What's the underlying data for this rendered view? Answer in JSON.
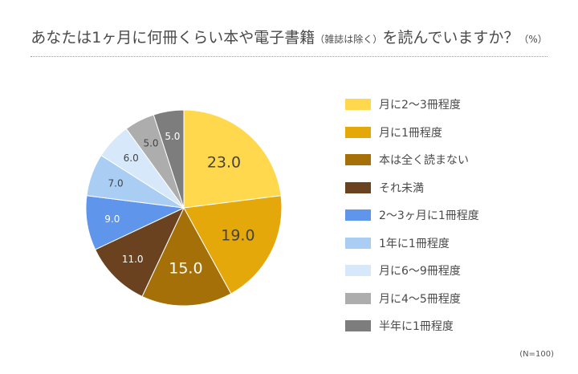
{
  "title": {
    "main": "あなたは1ヶ月に何冊くらい本や電子書籍",
    "paren": "（雑誌は除く）",
    "tail": "を読んでいますか？",
    "unit": "（%）"
  },
  "note": "(N=100)",
  "chart_data": {
    "type": "pie",
    "start": "12 o'clock",
    "direction": "clockwise",
    "slices": [
      {
        "label": "月に2〜3冊程度",
        "value": 23.0,
        "display": "23.0",
        "color": "#FFD84D",
        "text_color": "#444444"
      },
      {
        "label": "月に1冊程度",
        "value": 19.0,
        "display": "19.0",
        "color": "#E5A80A",
        "text_color": "#444444"
      },
      {
        "label": "本は全く読まない",
        "value": 15.0,
        "display": "15.0",
        "color": "#A57007",
        "text_color": "#ffffff"
      },
      {
        "label": "それ未満",
        "value": 11.0,
        "display": "11.0",
        "color": "#6A4220",
        "text_color": "#ffffff"
      },
      {
        "label": "2〜3ヶ月に1冊程度",
        "value": 9.0,
        "display": "9.0",
        "color": "#5F96EC",
        "text_color": "#ffffff"
      },
      {
        "label": "1年に1冊程度",
        "value": 7.0,
        "display": "7.0",
        "color": "#A9CDF3",
        "text_color": "#444444"
      },
      {
        "label": "月に6〜9冊程度",
        "value": 6.0,
        "display": "6.0",
        "color": "#D6E8FA",
        "text_color": "#444444"
      },
      {
        "label": "月に4〜5冊程度",
        "value": 5.0,
        "display": "5.0",
        "color": "#ADADAD",
        "text_color": "#444444"
      },
      {
        "label": "半年に1冊程度",
        "value": 5.0,
        "display": "5.0",
        "color": "#7D7D7D",
        "text_color": "#ffffff"
      }
    ],
    "legend_position": "right"
  }
}
